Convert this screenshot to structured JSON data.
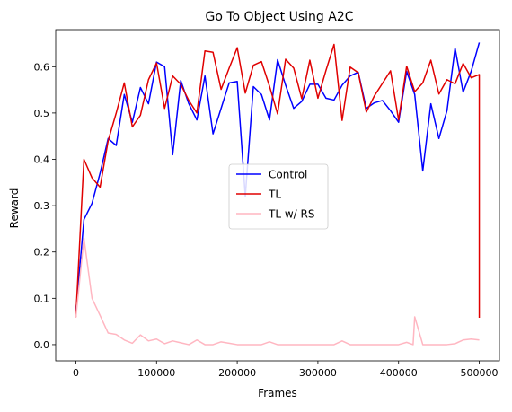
{
  "chart_data": {
    "type": "line",
    "title": "Go To Object Using A2C",
    "xlabel": "Frames",
    "ylabel": "Reward",
    "xlim": [
      -25000,
      525000
    ],
    "ylim": [
      -0.035,
      0.68
    ],
    "xticks": [
      0,
      100000,
      200000,
      300000,
      400000,
      500000
    ],
    "yticks": [
      0.0,
      0.1,
      0.2,
      0.3,
      0.4,
      0.5,
      0.6
    ],
    "grid": false,
    "legend_position": "center",
    "series": [
      {
        "name": "Control",
        "color": "#0000ff",
        "points": [
          [
            0,
            0.07
          ],
          [
            10000,
            0.27
          ],
          [
            20000,
            0.305
          ],
          [
            30000,
            0.37
          ],
          [
            40000,
            0.445
          ],
          [
            50000,
            0.43
          ],
          [
            60000,
            0.54
          ],
          [
            70000,
            0.48
          ],
          [
            80000,
            0.555
          ],
          [
            90000,
            0.52
          ],
          [
            100000,
            0.61
          ],
          [
            110000,
            0.6
          ],
          [
            120000,
            0.41
          ],
          [
            130000,
            0.57
          ],
          [
            140000,
            0.52
          ],
          [
            150000,
            0.485
          ],
          [
            160000,
            0.58
          ],
          [
            170000,
            0.455
          ],
          [
            180000,
            0.51
          ],
          [
            190000,
            0.565
          ],
          [
            200000,
            0.568
          ],
          [
            210000,
            0.32
          ],
          [
            220000,
            0.557
          ],
          [
            230000,
            0.54
          ],
          [
            240000,
            0.485
          ],
          [
            250000,
            0.615
          ],
          [
            260000,
            0.56
          ],
          [
            270000,
            0.51
          ],
          [
            280000,
            0.525
          ],
          [
            290000,
            0.562
          ],
          [
            300000,
            0.562
          ],
          [
            310000,
            0.532
          ],
          [
            320000,
            0.528
          ],
          [
            330000,
            0.56
          ],
          [
            340000,
            0.58
          ],
          [
            350000,
            0.588
          ],
          [
            360000,
            0.51
          ],
          [
            370000,
            0.522
          ],
          [
            380000,
            0.527
          ],
          [
            390000,
            0.505
          ],
          [
            400000,
            0.48
          ],
          [
            410000,
            0.59
          ],
          [
            420000,
            0.54
          ],
          [
            430000,
            0.375
          ],
          [
            440000,
            0.52
          ],
          [
            450000,
            0.445
          ],
          [
            460000,
            0.505
          ],
          [
            470000,
            0.64
          ],
          [
            480000,
            0.545
          ],
          [
            490000,
            0.59
          ],
          [
            500000,
            0.652
          ]
        ]
      },
      {
        "name": "TL",
        "color": "#e00000",
        "points": [
          [
            0,
            0.06
          ],
          [
            10000,
            0.4
          ],
          [
            20000,
            0.36
          ],
          [
            30000,
            0.34
          ],
          [
            40000,
            0.44
          ],
          [
            50000,
            0.5
          ],
          [
            60000,
            0.565
          ],
          [
            70000,
            0.47
          ],
          [
            80000,
            0.495
          ],
          [
            90000,
            0.572
          ],
          [
            100000,
            0.608
          ],
          [
            110000,
            0.51
          ],
          [
            120000,
            0.58
          ],
          [
            130000,
            0.562
          ],
          [
            140000,
            0.527
          ],
          [
            150000,
            0.5
          ],
          [
            160000,
            0.634
          ],
          [
            170000,
            0.631
          ],
          [
            180000,
            0.551
          ],
          [
            190000,
            0.597
          ],
          [
            200000,
            0.641
          ],
          [
            210000,
            0.543
          ],
          [
            220000,
            0.603
          ],
          [
            230000,
            0.611
          ],
          [
            240000,
            0.558
          ],
          [
            250000,
            0.498
          ],
          [
            260000,
            0.616
          ],
          [
            270000,
            0.597
          ],
          [
            280000,
            0.531
          ],
          [
            290000,
            0.614
          ],
          [
            300000,
            0.532
          ],
          [
            310000,
            0.592
          ],
          [
            320000,
            0.648
          ],
          [
            330000,
            0.484
          ],
          [
            340000,
            0.599
          ],
          [
            350000,
            0.587
          ],
          [
            360000,
            0.502
          ],
          [
            370000,
            0.537
          ],
          [
            380000,
            0.564
          ],
          [
            390000,
            0.591
          ],
          [
            400000,
            0.485
          ],
          [
            410000,
            0.601
          ],
          [
            420000,
            0.546
          ],
          [
            430000,
            0.565
          ],
          [
            440000,
            0.614
          ],
          [
            450000,
            0.541
          ],
          [
            460000,
            0.572
          ],
          [
            470000,
            0.563
          ],
          [
            480000,
            0.607
          ],
          [
            490000,
            0.576
          ],
          [
            500000,
            0.583
          ],
          [
            500000,
            0.058
          ]
        ]
      },
      {
        "name": "TL w/ RS",
        "color": "#ffb6c1",
        "points": [
          [
            0,
            0.058
          ],
          [
            10000,
            0.23
          ],
          [
            20000,
            0.1
          ],
          [
            30000,
            0.063
          ],
          [
            40000,
            0.025
          ],
          [
            50000,
            0.022
          ],
          [
            60000,
            0.01
          ],
          [
            70000,
            0.003
          ],
          [
            80000,
            0.021
          ],
          [
            90000,
            0.008
          ],
          [
            100000,
            0.012
          ],
          [
            110000,
            0.002
          ],
          [
            120000,
            0.008
          ],
          [
            130000,
            0.004
          ],
          [
            140000,
            0.0
          ],
          [
            150000,
            0.01
          ],
          [
            160000,
            0.0
          ],
          [
            170000,
            0.0
          ],
          [
            180000,
            0.006
          ],
          [
            190000,
            0.003
          ],
          [
            200000,
            0.0
          ],
          [
            210000,
            0.0
          ],
          [
            220000,
            0.0
          ],
          [
            230000,
            0.0
          ],
          [
            240000,
            0.006
          ],
          [
            250000,
            0.0
          ],
          [
            260000,
            0.0
          ],
          [
            270000,
            0.0
          ],
          [
            280000,
            0.0
          ],
          [
            290000,
            0.0
          ],
          [
            300000,
            0.0
          ],
          [
            310000,
            0.0
          ],
          [
            320000,
            0.0
          ],
          [
            330000,
            0.008
          ],
          [
            340000,
            0.0
          ],
          [
            350000,
            0.0
          ],
          [
            360000,
            0.0
          ],
          [
            370000,
            0.0
          ],
          [
            380000,
            0.0
          ],
          [
            390000,
            0.0
          ],
          [
            400000,
            0.0
          ],
          [
            410000,
            0.005
          ],
          [
            418000,
            0.0
          ],
          [
            420000,
            0.06
          ],
          [
            425000,
            0.03
          ],
          [
            430000,
            0.0
          ],
          [
            440000,
            0.0
          ],
          [
            450000,
            0.0
          ],
          [
            460000,
            0.0
          ],
          [
            470000,
            0.002
          ],
          [
            480000,
            0.01
          ],
          [
            490000,
            0.012
          ],
          [
            500000,
            0.01
          ]
        ]
      }
    ]
  }
}
